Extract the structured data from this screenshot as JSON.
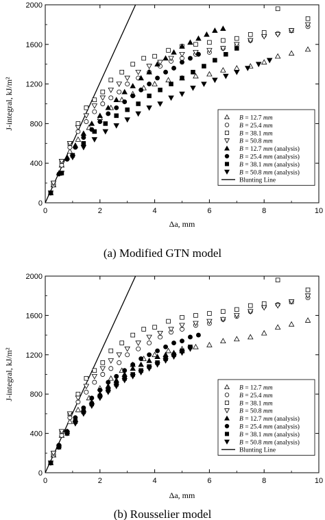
{
  "chart_data": [
    {
      "type": "scatter",
      "caption": "(a)   Modified GTN model",
      "xlabel": "Δa, mm",
      "ylabel": "J-integral, kJ/m²",
      "xlim": [
        0,
        10
      ],
      "ylim": [
        0,
        2000
      ],
      "xticks": [
        0,
        2,
        4,
        6,
        8,
        10
      ],
      "yticks": [
        0,
        400,
        800,
        1200,
        1600,
        2000
      ],
      "legend_position": "bottom-right",
      "blunting_line": {
        "name": "Blunting Line",
        "x": [
          0,
          3.3
        ],
        "y": [
          0,
          2000
        ]
      },
      "series": [
        {
          "name": "B = 12.7 mm",
          "marker": "triangle-up-open",
          "x": [
            0.3,
            0.6,
            0.9,
            1.2,
            1.6,
            2.0,
            2.4,
            2.8,
            3.2,
            3.6,
            4.0,
            4.5,
            5.0,
            5.5,
            6.0,
            6.5,
            7.0,
            7.5,
            8.0,
            8.5,
            9.0,
            9.6
          ],
          "y": [
            180,
            380,
            520,
            640,
            760,
            860,
            960,
            1040,
            1100,
            1160,
            1200,
            1240,
            1260,
            1280,
            1300,
            1340,
            1360,
            1380,
            1420,
            1480,
            1510,
            1550
          ]
        },
        {
          "name": "B = 25.4 mm",
          "marker": "circle-open",
          "x": [
            0.3,
            0.6,
            0.9,
            1.2,
            1.5,
            1.8,
            2.1,
            2.4,
            2.7,
            3.0,
            3.4,
            3.8,
            4.2,
            4.6,
            5.0,
            5.5,
            6.0,
            6.5,
            7.0,
            7.5,
            8.0,
            8.5,
            9.0,
            9.6
          ],
          "y": [
            180,
            380,
            560,
            720,
            820,
            920,
            1000,
            1060,
            1120,
            1200,
            1260,
            1320,
            1380,
            1430,
            1460,
            1500,
            1520,
            1560,
            1590,
            1640,
            1690,
            1710,
            1740,
            1780
          ]
        },
        {
          "name": "B = 38.1 mm",
          "marker": "square-open",
          "x": [
            0.3,
            0.6,
            0.9,
            1.2,
            1.5,
            1.8,
            2.1,
            2.4,
            2.8,
            3.2,
            3.6,
            4.0,
            4.5,
            5.0,
            5.5,
            6.0,
            6.5,
            7.0,
            7.5,
            8.0,
            8.5,
            9.0,
            9.6
          ],
          "y": [
            200,
            420,
            600,
            800,
            960,
            1040,
            1120,
            1240,
            1320,
            1400,
            1460,
            1480,
            1540,
            1580,
            1600,
            1620,
            1640,
            1660,
            1700,
            1720,
            1960,
            1740,
            1860
          ]
        },
        {
          "name": "B = 50.8 mm",
          "marker": "triangle-down-open",
          "x": [
            0.3,
            0.6,
            0.9,
            1.2,
            1.5,
            1.8,
            2.1,
            2.4,
            2.7,
            3.0,
            3.4,
            3.8,
            4.2,
            4.6,
            5.0,
            5.5,
            6.0,
            6.5,
            7.0,
            7.5,
            8.0,
            8.5,
            9.0,
            9.6
          ],
          "y": [
            200,
            420,
            600,
            760,
            880,
            980,
            1060,
            1140,
            1200,
            1260,
            1320,
            1380,
            1420,
            1460,
            1500,
            1520,
            1540,
            1560,
            1600,
            1640,
            1680,
            1700,
            1740,
            1800
          ]
        },
        {
          "name": "B = 12.7 mm (analysis)",
          "marker": "triangle-up-filled",
          "x": [
            0.2,
            0.5,
            0.8,
            1.1,
            1.4,
            1.7,
            2.0,
            2.3,
            2.6,
            2.9,
            3.2,
            3.5,
            3.8,
            4.1,
            4.4,
            4.7,
            5.0,
            5.3,
            5.6,
            5.9,
            6.2,
            6.5
          ],
          "y": [
            100,
            300,
            460,
            580,
            700,
            800,
            880,
            960,
            1040,
            1120,
            1180,
            1260,
            1320,
            1400,
            1460,
            1520,
            1580,
            1620,
            1660,
            1700,
            1740,
            1760
          ]
        },
        {
          "name": "B = 25.4 mm (analysis)",
          "marker": "circle-filled",
          "x": [
            0.2,
            0.5,
            0.8,
            1.1,
            1.4,
            1.7,
            2.0,
            2.3,
            2.6,
            2.9,
            3.2,
            3.5,
            3.8,
            4.1,
            4.4,
            4.7,
            5.0,
            5.3,
            5.6
          ],
          "y": [
            100,
            290,
            440,
            560,
            660,
            740,
            820,
            900,
            960,
            1020,
            1080,
            1140,
            1200,
            1260,
            1320,
            1360,
            1420,
            1460,
            1500
          ]
        },
        {
          "name": "B = 38.1 mm (analysis)",
          "marker": "square-filled",
          "x": [
            0.2,
            0.6,
            1.0,
            1.4,
            1.8,
            2.2,
            2.6,
            3.0,
            3.4,
            3.8,
            4.2,
            4.6,
            5.0,
            5.4,
            5.8,
            6.2,
            6.6,
            7.0
          ],
          "y": [
            100,
            300,
            480,
            600,
            720,
            800,
            880,
            940,
            1000,
            1080,
            1140,
            1200,
            1260,
            1320,
            1380,
            1440,
            1500,
            1560
          ]
        },
        {
          "name": "B = 50.8 mm (analysis)",
          "marker": "triangle-down-filled",
          "x": [
            0.2,
            0.6,
            1.0,
            1.4,
            1.8,
            2.2,
            2.6,
            3.0,
            3.4,
            3.8,
            4.2,
            4.6,
            5.0,
            5.4,
            5.8,
            6.2,
            6.6,
            7.0,
            7.4,
            7.8,
            8.2
          ],
          "y": [
            100,
            300,
            460,
            560,
            640,
            720,
            780,
            840,
            900,
            960,
            1000,
            1060,
            1100,
            1160,
            1200,
            1240,
            1280,
            1320,
            1360,
            1400,
            1440
          ]
        }
      ]
    },
    {
      "type": "scatter",
      "caption": "(b)   Rousselier model",
      "xlabel": "Δa, mm",
      "ylabel": "J-integral, kJ/m²",
      "xlim": [
        0,
        10
      ],
      "ylim": [
        0,
        2000
      ],
      "xticks": [
        0,
        2,
        4,
        6,
        8,
        10
      ],
      "yticks": [
        0,
        400,
        800,
        1200,
        1600,
        2000
      ],
      "legend_position": "bottom-right",
      "blunting_line": {
        "name": "Blunting Line",
        "x": [
          0,
          3.3
        ],
        "y": [
          0,
          2000
        ]
      },
      "series": [
        {
          "name": "B = 12.7 mm",
          "marker": "triangle-up-open",
          "x": [
            0.3,
            0.6,
            0.9,
            1.2,
            1.6,
            2.0,
            2.4,
            2.8,
            3.2,
            3.6,
            4.0,
            4.5,
            5.0,
            5.5,
            6.0,
            6.5,
            7.0,
            7.5,
            8.0,
            8.5,
            9.0,
            9.6
          ],
          "y": [
            180,
            380,
            520,
            640,
            760,
            860,
            960,
            1040,
            1100,
            1160,
            1200,
            1240,
            1260,
            1280,
            1300,
            1340,
            1360,
            1380,
            1420,
            1480,
            1510,
            1550
          ]
        },
        {
          "name": "B = 25.4 mm",
          "marker": "circle-open",
          "x": [
            0.3,
            0.6,
            0.9,
            1.2,
            1.5,
            1.8,
            2.1,
            2.4,
            2.7,
            3.0,
            3.4,
            3.8,
            4.2,
            4.6,
            5.0,
            5.5,
            6.0,
            6.5,
            7.0,
            7.5,
            8.0,
            8.5,
            9.0,
            9.6
          ],
          "y": [
            180,
            380,
            560,
            720,
            820,
            920,
            1000,
            1060,
            1120,
            1200,
            1260,
            1320,
            1380,
            1430,
            1460,
            1500,
            1520,
            1560,
            1590,
            1640,
            1690,
            1710,
            1740,
            1780
          ]
        },
        {
          "name": "B = 38.1 mm",
          "marker": "square-open",
          "x": [
            0.3,
            0.6,
            0.9,
            1.2,
            1.5,
            1.8,
            2.1,
            2.4,
            2.8,
            3.2,
            3.6,
            4.0,
            4.5,
            5.0,
            5.5,
            6.0,
            6.5,
            7.0,
            7.5,
            8.0,
            8.5,
            9.0,
            9.6
          ],
          "y": [
            200,
            420,
            600,
            800,
            960,
            1040,
            1120,
            1240,
            1320,
            1400,
            1460,
            1480,
            1540,
            1580,
            1600,
            1620,
            1640,
            1660,
            1700,
            1720,
            1960,
            1740,
            1860
          ]
        },
        {
          "name": "B = 50.8 mm",
          "marker": "triangle-down-open",
          "x": [
            0.3,
            0.6,
            0.9,
            1.2,
            1.5,
            1.8,
            2.1,
            2.4,
            2.7,
            3.0,
            3.4,
            3.8,
            4.2,
            4.6,
            5.0,
            5.5,
            6.0,
            6.5,
            7.0,
            7.5,
            8.0,
            8.5,
            9.0,
            9.6
          ],
          "y": [
            200,
            420,
            600,
            760,
            880,
            980,
            1060,
            1140,
            1200,
            1260,
            1320,
            1380,
            1420,
            1460,
            1500,
            1520,
            1540,
            1560,
            1600,
            1640,
            1680,
            1700,
            1740,
            1800
          ]
        },
        {
          "name": "B = 12.7 mm (analysis)",
          "marker": "triangle-up-filled",
          "x": [
            0.2,
            0.5,
            0.8,
            1.1,
            1.4,
            1.7,
            2.0,
            2.3,
            2.6,
            2.9,
            3.2,
            3.5,
            3.8,
            4.1,
            4.4,
            4.7,
            5.0
          ],
          "y": [
            100,
            280,
            420,
            540,
            640,
            720,
            800,
            880,
            940,
            1000,
            1060,
            1100,
            1140,
            1180,
            1200,
            1220,
            1240
          ]
        },
        {
          "name": "B = 25.4 mm (analysis)",
          "marker": "circle-filled",
          "x": [
            0.2,
            0.5,
            0.8,
            1.1,
            1.4,
            1.7,
            2.0,
            2.3,
            2.6,
            2.9,
            3.2,
            3.5,
            3.8,
            4.1,
            4.4,
            4.7,
            5.0,
            5.3,
            5.6
          ],
          "y": [
            100,
            280,
            420,
            560,
            660,
            760,
            840,
            920,
            980,
            1040,
            1100,
            1160,
            1200,
            1240,
            1280,
            1320,
            1340,
            1380,
            1400
          ]
        },
        {
          "name": "B = 38.1 mm (analysis)",
          "marker": "square-filled",
          "x": [
            0.2,
            0.5,
            0.8,
            1.1,
            1.4,
            1.7,
            2.0,
            2.3,
            2.6,
            2.9,
            3.2,
            3.5,
            3.8,
            4.1,
            4.4,
            4.7,
            5.0,
            5.3
          ],
          "y": [
            100,
            260,
            400,
            520,
            620,
            700,
            780,
            840,
            900,
            960,
            1000,
            1040,
            1080,
            1120,
            1160,
            1200,
            1240,
            1280
          ]
        },
        {
          "name": "B = 50.8 mm (analysis)",
          "marker": "triangle-down-filled",
          "x": [
            0.2,
            0.5,
            0.8,
            1.1,
            1.4,
            1.7,
            2.0,
            2.3,
            2.6,
            2.9,
            3.2,
            3.5,
            3.8,
            4.1,
            4.4,
            4.7,
            5.0,
            5.3
          ],
          "y": [
            100,
            260,
            400,
            500,
            600,
            680,
            760,
            820,
            880,
            940,
            980,
            1020,
            1060,
            1100,
            1140,
            1180,
            1220,
            1260
          ]
        }
      ]
    }
  ]
}
